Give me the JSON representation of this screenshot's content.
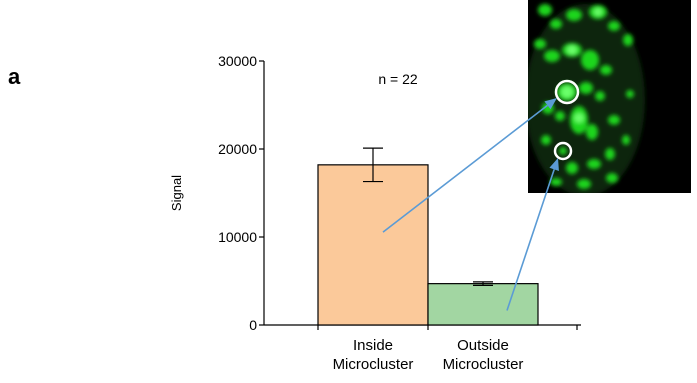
{
  "panel_label": "a",
  "chart_data": {
    "type": "bar",
    "categories": [
      [
        "Inside",
        "Microcluster"
      ],
      [
        "Outside",
        "Microcluster"
      ]
    ],
    "values": [
      18200,
      4700
    ],
    "errors": [
      1900,
      200
    ],
    "bar_colors": [
      "#fbc99a",
      "#a2d6a2"
    ],
    "ylabel": "Signal",
    "ylim": [
      0,
      30000
    ],
    "yticks": [
      0,
      10000,
      20000,
      30000
    ],
    "annotation": "n = 22",
    "inset": {
      "type": "fluorescence-micrograph",
      "background": "#000000",
      "signal_color": "#1fd61f",
      "marker_color": "#ffffff"
    },
    "arrow_color": "#5b9bd5"
  }
}
